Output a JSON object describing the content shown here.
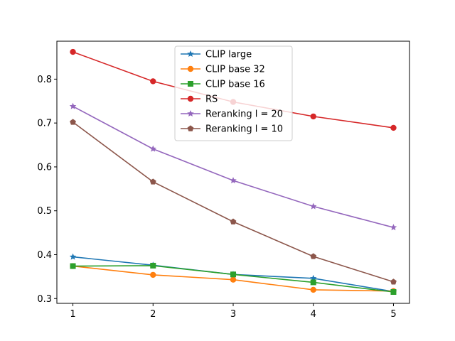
{
  "chart_data": {
    "type": "line",
    "title": "",
    "xlabel": "",
    "ylabel": "",
    "x": [
      1,
      2,
      3,
      4,
      5
    ],
    "xticks": [
      "1",
      "2",
      "3",
      "4",
      "5"
    ],
    "yticks": [
      "0.3",
      "0.4",
      "0.5",
      "0.6",
      "0.7",
      "0.8"
    ],
    "xlim": [
      0.8,
      5.2
    ],
    "ylim": [
      0.2891,
      0.8864
    ],
    "grid": false,
    "legend_position": "top-center",
    "series": [
      {
        "name": "CLIP large",
        "color": "#1f77b4",
        "marker": "star",
        "values": [
          0.395,
          0.376,
          0.355,
          0.346,
          0.316
        ]
      },
      {
        "name": "CLIP base 32",
        "color": "#ff7f0e",
        "marker": "circle",
        "values": [
          0.374,
          0.354,
          0.343,
          0.32,
          0.317
        ]
      },
      {
        "name": "CLIP base 16",
        "color": "#2ca02c",
        "marker": "square",
        "values": [
          0.374,
          0.375,
          0.355,
          0.337,
          0.315
        ]
      },
      {
        "name": "RS",
        "color": "#d62728",
        "marker": "circle",
        "values": [
          0.862,
          0.795,
          0.748,
          0.715,
          0.689
        ]
      },
      {
        "name": "Reranking l = 20",
        "color": "#9467bd",
        "marker": "star",
        "values": [
          0.738,
          0.641,
          0.569,
          0.51,
          0.462
        ]
      },
      {
        "name": "Reranking l = 10",
        "color": "#8c564b",
        "marker": "pentagon",
        "values": [
          0.702,
          0.566,
          0.475,
          0.396,
          0.338
        ]
      }
    ]
  }
}
